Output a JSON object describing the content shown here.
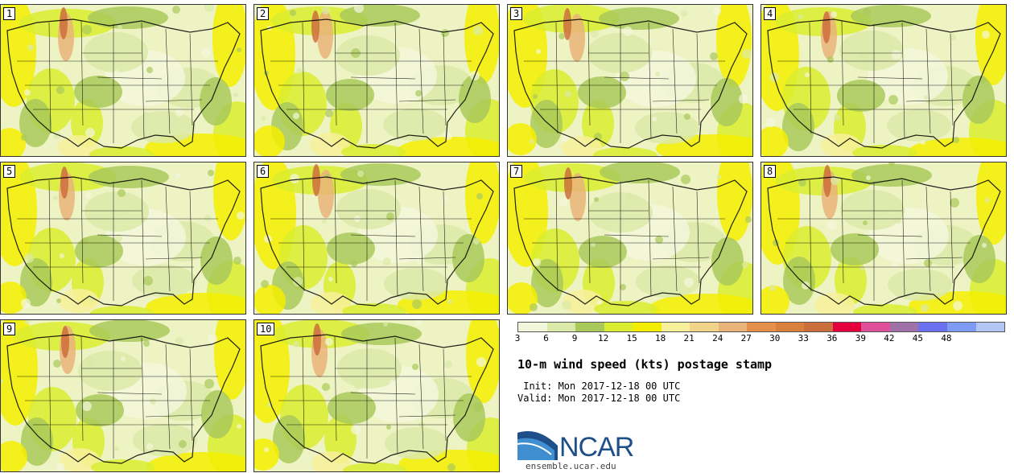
{
  "panels": [
    {
      "label": "1"
    },
    {
      "label": "2"
    },
    {
      "label": "3"
    },
    {
      "label": "4"
    },
    {
      "label": "5"
    },
    {
      "label": "6"
    },
    {
      "label": "7"
    },
    {
      "label": "8"
    },
    {
      "label": "9"
    },
    {
      "label": "10"
    }
  ],
  "colorbar": {
    "ticks": [
      "3",
      "6",
      "9",
      "12",
      "15",
      "18",
      "21",
      "24",
      "27",
      "30",
      "33",
      "36",
      "39",
      "42",
      "45",
      "48"
    ],
    "colors": [
      "#f3f7dc",
      "#dbe9a8",
      "#a9c95a",
      "#d9ec2f",
      "#f3ee00",
      "#f7f09a",
      "#f1d38a",
      "#e9b37a",
      "#e48f4a",
      "#d9803c",
      "#cc6e3c",
      "#e3003c",
      "#e0509a",
      "#a070a8",
      "#6a70f0",
      "#7e9cf6",
      "#b3c6f4"
    ]
  },
  "title": "10-m wind speed (kts) postage stamp",
  "init_text": " Init: Mon 2017-12-18 00 UTC",
  "valid_text": "Valid: Mon 2017-12-18 00 UTC",
  "logo": {
    "name": "NCAR",
    "url": "ensemble.ucar.edu"
  }
}
